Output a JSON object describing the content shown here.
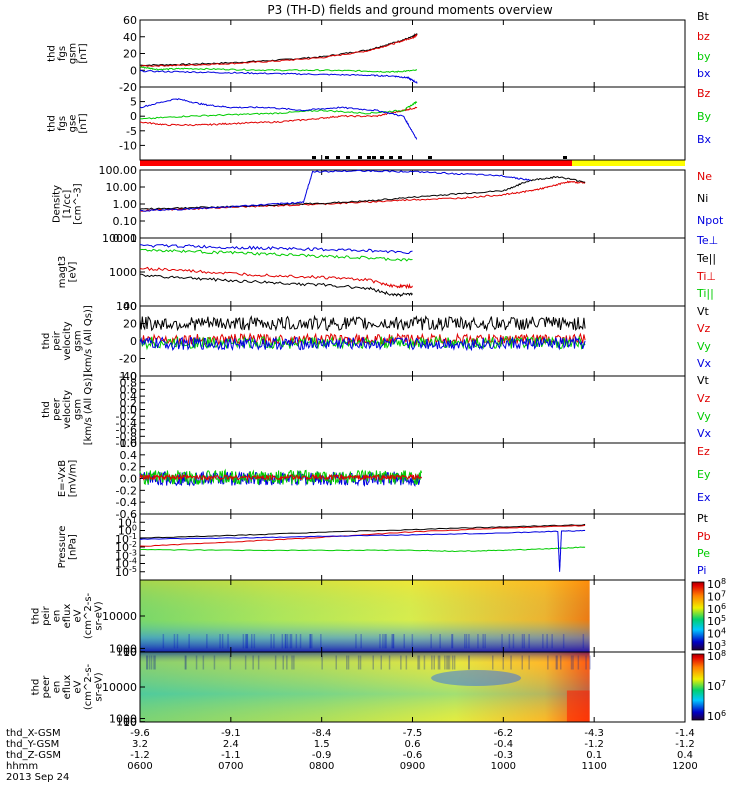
{
  "title": "P3 (TH-D) fields and ground moments overview",
  "colors": {
    "black": "#000000",
    "red": "#e00000",
    "green": "#00cc00",
    "blue": "#0000e0",
    "orange": "#ff7000",
    "yellow": "#ffff00",
    "purple": "#a000a0"
  },
  "chart_data": [
    {
      "id": "fgs_gsm",
      "type": "line",
      "ylabel": [
        "thd",
        "fgs",
        "gsm",
        "[nT]"
      ],
      "ylim": [
        -20,
        60
      ],
      "yticks": [
        "60",
        "40",
        "20",
        "0",
        "-20"
      ],
      "legend": [
        "Bt",
        "bz",
        "by",
        "bx"
      ],
      "series": [
        {
          "name": "Bt",
          "color": "#000000",
          "x": [
            6.0,
            6.5,
            7.0,
            7.5,
            8.0,
            8.5,
            8.8,
            9.0,
            9.05
          ],
          "y": [
            6,
            7,
            9,
            12,
            16,
            24,
            33,
            40,
            43
          ]
        },
        {
          "name": "bz",
          "color": "#e00000",
          "x": [
            6.0,
            6.5,
            7.0,
            7.5,
            8.0,
            8.5,
            8.8,
            9.0,
            9.05
          ],
          "y": [
            5,
            6,
            8,
            11,
            15,
            23,
            32,
            39,
            42
          ]
        },
        {
          "name": "by",
          "color": "#00cc00",
          "x": [
            6.0,
            6.2,
            6.5,
            7.0,
            7.5,
            8.0,
            8.5,
            8.8,
            9.05
          ],
          "y": [
            4,
            1,
            2,
            1,
            0,
            0,
            -1,
            -2,
            0
          ]
        },
        {
          "name": "bx",
          "color": "#0000e0",
          "x": [
            6.0,
            6.5,
            7.0,
            7.5,
            8.0,
            8.5,
            8.8,
            8.95,
            9.05
          ],
          "y": [
            -1,
            -2,
            -3,
            -4,
            -5,
            -6,
            -7,
            -9,
            -15
          ]
        }
      ]
    },
    {
      "id": "fgs_dsl",
      "type": "line",
      "ylabel": [
        "thd",
        "fgs",
        "gse",
        "[nT]"
      ],
      "ylim": [
        -15,
        10
      ],
      "yticks": [
        "5",
        "0",
        "-5",
        "-10"
      ],
      "legend": [
        "Bz",
        "By",
        "Bx"
      ],
      "series": [
        {
          "name": "Bz",
          "color": "#e00000",
          "x": [
            6.0,
            6.3,
            6.7,
            7.0,
            7.5,
            7.9,
            8.2,
            8.6,
            8.9,
            9.05
          ],
          "y": [
            -2,
            -3,
            -3,
            -2.5,
            -2,
            -1,
            0,
            0,
            2,
            3
          ]
        },
        {
          "name": "By",
          "color": "#00cc00",
          "x": [
            6.0,
            6.5,
            7.0,
            7.5,
            8.0,
            8.5,
            8.9,
            9.05
          ],
          "y": [
            -1,
            0,
            0.5,
            1,
            2,
            1,
            2,
            5
          ]
        },
        {
          "name": "Bx",
          "color": "#0000e0",
          "x": [
            6.0,
            6.4,
            6.7,
            7.0,
            7.4,
            7.8,
            8.2,
            8.6,
            8.9,
            9.05
          ],
          "y": [
            3,
            6,
            4,
            3,
            3,
            2,
            3,
            2,
            0,
            -8
          ]
        }
      ]
    },
    {
      "id": "density",
      "type": "line",
      "scale": "log",
      "ylabel": [
        "Density",
        "[1/cc]",
        "[cm^-3]"
      ],
      "ylim": [
        0.01,
        100
      ],
      "yticks": [
        "100.00",
        "10.00",
        "1.00",
        "0.10",
        "0.01"
      ],
      "legend": [
        "Ne",
        "Ni",
        "Npot"
      ],
      "series": [
        {
          "name": "Ne",
          "color": "#e00000",
          "x": [
            6.0,
            6.5,
            7.0,
            7.5,
            8.0,
            8.5,
            9.0,
            9.5,
            10.0,
            10.3,
            10.5,
            10.7,
            10.9
          ],
          "y": [
            0.4,
            0.5,
            0.65,
            0.8,
            1.0,
            1.3,
            1.8,
            2.2,
            3.5,
            6,
            10,
            20,
            18
          ]
        },
        {
          "name": "Ni",
          "color": "#000000",
          "x": [
            6.0,
            6.5,
            7.0,
            7.5,
            8.0,
            8.5,
            9.0,
            9.5,
            10.0,
            10.3,
            10.6,
            10.9
          ],
          "y": [
            0.5,
            0.6,
            0.7,
            0.9,
            1.1,
            1.5,
            2.5,
            4.0,
            6.0,
            25,
            40,
            20
          ]
        },
        {
          "name": "Npot",
          "color": "#0000e0",
          "x": [
            6.0,
            6.5,
            7.0,
            7.5,
            7.8,
            7.9,
            8.5,
            9.0,
            9.5,
            10.0,
            10.3
          ],
          "y": [
            0.4,
            0.5,
            0.7,
            1.0,
            1.3,
            80,
            90,
            80,
            60,
            45,
            25
          ]
        }
      ]
    },
    {
      "id": "temperature",
      "type": "line",
      "scale": "log",
      "ylabel": [
        "magt3",
        "[eV]"
      ],
      "ylim": [
        100,
        10000
      ],
      "yticks": [
        "10000",
        "1000",
        "100"
      ],
      "legend": [
        "Te⊥",
        "Te||",
        "Ti⊥",
        "Ti||"
      ],
      "series": [
        {
          "name": "Te⊥",
          "color": "#0000e0",
          "x": [
            6.0,
            6.5,
            7.0,
            7.5,
            8.0,
            8.5,
            9.0
          ],
          "y": [
            6000,
            5800,
            5300,
            5000,
            4600,
            4300,
            3800
          ]
        },
        {
          "name": "Ti||",
          "color": "#00cc00",
          "x": [
            6.0,
            6.5,
            7.0,
            7.5,
            8.0,
            8.5,
            9.0
          ],
          "y": [
            4500,
            4100,
            3700,
            3300,
            2900,
            2600,
            2200
          ]
        },
        {
          "name": "Ti⊥",
          "color": "#e00000",
          "x": [
            6.0,
            6.5,
            7.0,
            7.5,
            8.0,
            8.5,
            8.8,
            9.0
          ],
          "y": [
            1300,
            1100,
            900,
            800,
            700,
            600,
            380,
            380
          ]
        },
        {
          "name": "Te||",
          "color": "#000000",
          "x": [
            6.0,
            6.5,
            7.0,
            7.5,
            8.0,
            8.5,
            8.8,
            9.0
          ],
          "y": [
            800,
            680,
            560,
            480,
            420,
            340,
            210,
            230
          ]
        }
      ]
    },
    {
      "id": "peir_velocity",
      "type": "line",
      "ylabel": [
        "thd",
        "peir",
        "velocity",
        "gsm",
        "[km/s (All Qs)]"
      ],
      "ylim": [
        -40,
        40
      ],
      "yticks": [
        "40",
        "20",
        "0",
        "-20",
        "-40"
      ],
      "legend": [
        "Vt",
        "Vz",
        "Vy",
        "Vx"
      ],
      "x_range": [
        6.0,
        10.9
      ],
      "series": [
        {
          "name": "Vt",
          "color": "#000000",
          "base": 20,
          "amp": 8
        },
        {
          "name": "Vz",
          "color": "#e00000",
          "base": 2,
          "amp": 6
        },
        {
          "name": "Vy",
          "color": "#00cc00",
          "base": -2,
          "amp": 7
        },
        {
          "name": "Vx",
          "color": "#0000e0",
          "base": -3,
          "amp": 7
        }
      ]
    },
    {
      "id": "peer_velocity",
      "type": "line",
      "ylabel": [
        "thd",
        "peer",
        "velocity",
        "gsm",
        "[km/s (All Qs)]"
      ],
      "ylim": [
        -1.0,
        1.0
      ],
      "yticks": [
        "1.0",
        "0.8",
        "0.6",
        "0.4",
        "0.2",
        "0.0",
        "-0.2",
        "-0.4",
        "-0.6",
        "-0.8",
        "-1.0"
      ],
      "legend": [
        "Vt",
        "Vz",
        "Vy",
        "Vx"
      ],
      "series": []
    },
    {
      "id": "efield",
      "type": "line",
      "ylabel": [
        "E=-VxB",
        "[mV/m]"
      ],
      "ylim": [
        -0.6,
        0.6
      ],
      "yticks": [
        "0.6",
        "0.4",
        "0.2",
        "0.0",
        "-0.2",
        "-0.4",
        "-0.6"
      ],
      "legend": [
        "Ez",
        "Ey",
        "Ex"
      ],
      "x_range": [
        6.0,
        9.1
      ],
      "series": [
        {
          "name": "Ex",
          "color": "#0000e0",
          "base": 0.0,
          "amp": 0.12
        },
        {
          "name": "Ey",
          "color": "#00cc00",
          "base": 0.02,
          "amp": 0.12
        },
        {
          "name": "Ez",
          "color": "#e00000",
          "base": 0.02,
          "amp": 0.04
        }
      ]
    },
    {
      "id": "pressure",
      "type": "line",
      "scale": "log",
      "ylabel": [
        "Pressure",
        "[nPa]"
      ],
      "ylim": [
        1e-06,
        100
      ],
      "yticks": [
        "10^1",
        "10^0",
        "10^-1",
        "10^-2",
        "10^-3",
        "10^-4",
        "10^-5"
      ],
      "legend": [
        "Pt",
        "Pb",
        "Pe",
        "Pi"
      ],
      "series": [
        {
          "name": "Pt",
          "color": "#000000",
          "x": [
            6.0,
            7.0,
            8.0,
            9.0,
            10.0,
            10.9
          ],
          "y": [
            0.12,
            0.25,
            0.6,
            1.3,
            2.8,
            5
          ]
        },
        {
          "name": "Pb",
          "color": "#e00000",
          "x": [
            6.0,
            7.0,
            8.0,
            9.0,
            10.0,
            10.9
          ],
          "y": [
            0.012,
            0.04,
            0.15,
            0.7,
            2.0,
            4
          ]
        },
        {
          "name": "Pe",
          "color": "#00cc00",
          "x": [
            6.0,
            7.0,
            8.0,
            9.0,
            9.5,
            10.0,
            10.5,
            10.9
          ],
          "y": [
            0.005,
            0.004,
            0.004,
            0.004,
            0.003,
            0.004,
            0.006,
            0.01
          ]
        },
        {
          "name": "Pi",
          "color": "#0000e0",
          "x": [
            6.0,
            7.0,
            8.0,
            9.0,
            10.0,
            10.6,
            10.62,
            10.64,
            10.9
          ],
          "y": [
            0.09,
            0.12,
            0.2,
            0.3,
            0.5,
            0.8,
            1e-05,
            0.8,
            1.0
          ]
        }
      ]
    },
    {
      "id": "peir_eflux",
      "type": "heatmap",
      "ylabel": [
        "thd",
        "peir",
        "en",
        "eflux",
        "eV",
        "(cm^2-s-",
        "sr-eV)"
      ],
      "ylim": [
        5,
        20000
      ],
      "yticks": [
        "10000",
        "1000",
        "100",
        "10"
      ],
      "colorbar_ticks": [
        "10^8",
        "10^7",
        "10^6",
        "10^5",
        "10^4",
        "10^3"
      ]
    },
    {
      "id": "peer_eflux",
      "type": "heatmap",
      "ylabel": [
        "thd",
        "peer",
        "en",
        "eflux",
        "eV",
        "(cm^2-s-",
        "sr-eV)"
      ],
      "ylim": [
        5,
        20000
      ],
      "yticks": [
        "10000",
        "1000",
        "100",
        "10"
      ],
      "colorbar_ticks": [
        "10^8",
        "10^7",
        "10^6"
      ]
    }
  ],
  "xaxis": {
    "rows": [
      {
        "label": "thd_X-GSM",
        "values": [
          "-9.6",
          "-9.1",
          "-8.4",
          "-7.5",
          "-6.2",
          "-4.3",
          "-1.4"
        ]
      },
      {
        "label": "thd_Y-GSM",
        "values": [
          "3.2",
          "2.4",
          "1.5",
          "0.6",
          "-0.4",
          "-1.2",
          "-1.2"
        ]
      },
      {
        "label": "thd_Z-GSM",
        "values": [
          "-1.2",
          "-1.1",
          "-0.9",
          "-0.6",
          "-0.3",
          "0.1",
          "0.4"
        ]
      },
      {
        "label": "hhmm",
        "values": [
          "0600",
          "0700",
          "0800",
          "0900",
          "1000",
          "1100",
          "1200"
        ]
      }
    ],
    "date": "2013 Sep 24"
  }
}
